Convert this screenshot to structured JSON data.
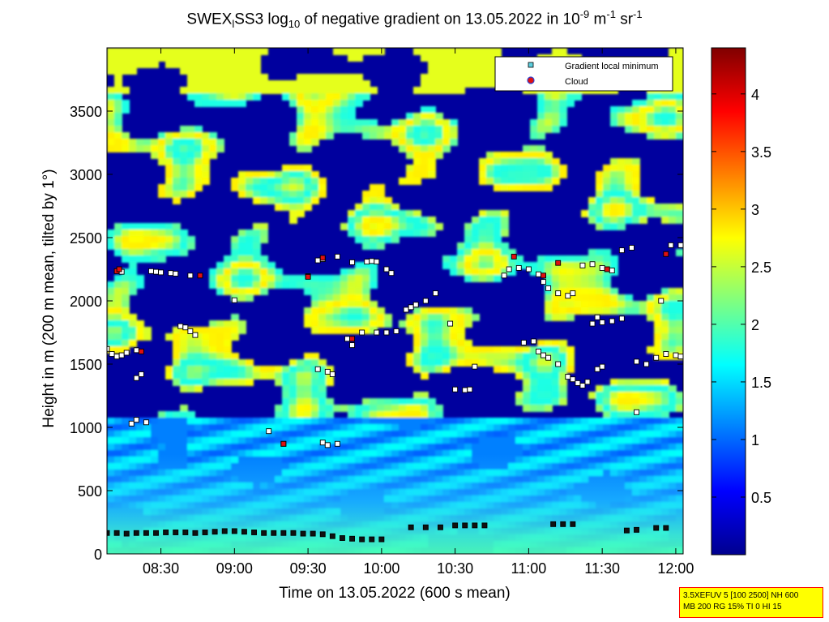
{
  "title": {
    "prefix": "SWEX",
    "sub1": "l",
    "mid": "SS3 log",
    "sub2": "10",
    "text": " of negative gradient on 13.05.2022 in 10",
    "sup1": "-9",
    "unit1": " m",
    "sup2": "-1",
    "unit2": " sr",
    "sup3": "-1"
  },
  "footer_lines": [
    "3.5XEFUV 5 [100 2500] NH 600",
    "MB 200 RG 15% TI 0 HI 15"
  ],
  "colors": {
    "accent_marker_fill": "#5ccfdf",
    "cloud_fill": "#e01010",
    "cloud_edge": "#3040d0"
  },
  "chart_data": {
    "type": "heatmap",
    "colormap": "jet",
    "xlabel": "Time on 13.05.2022 (600 s mean)",
    "ylabel": "Height in m (200 m mean, tilted by 1°)",
    "x_ticks": [
      "08:30",
      "09:00",
      "09:30",
      "10:00",
      "10:30",
      "11:00",
      "11:30",
      "12:00"
    ],
    "y_ticks": [
      0,
      500,
      1000,
      1500,
      2000,
      2500,
      3000,
      3500
    ],
    "xlim": [
      "08:08",
      "12:03"
    ],
    "ylim": [
      0,
      4000
    ],
    "colorbar": {
      "ticks": [
        0.5,
        1,
        1.5,
        2,
        2.5,
        3,
        3.5,
        4
      ],
      "range": [
        0,
        4.4
      ]
    },
    "legend": {
      "position": "top-right",
      "entries": [
        {
          "label": "Gradient local minimum",
          "marker": "square",
          "color": "#5ccfdf"
        },
        {
          "label": "Cloud",
          "marker": "circle",
          "color": "#e01010"
        }
      ]
    },
    "series": [
      {
        "name": "Gradient local minimum",
        "points": [
          [
            "08:08",
            165
          ],
          [
            "08:12",
            165
          ],
          [
            "08:16",
            160
          ],
          [
            "08:20",
            165
          ],
          [
            "08:24",
            165
          ],
          [
            "08:28",
            165
          ],
          [
            "08:32",
            170
          ],
          [
            "08:36",
            170
          ],
          [
            "08:40",
            170
          ],
          [
            "08:44",
            165
          ],
          [
            "08:48",
            170
          ],
          [
            "08:52",
            175
          ],
          [
            "08:56",
            180
          ],
          [
            "09:00",
            180
          ],
          [
            "09:04",
            175
          ],
          [
            "09:08",
            170
          ],
          [
            "09:12",
            165
          ],
          [
            "09:16",
            165
          ],
          [
            "09:20",
            165
          ],
          [
            "09:24",
            165
          ],
          [
            "09:28",
            160
          ],
          [
            "09:32",
            160
          ],
          [
            "09:36",
            155
          ],
          [
            "09:40",
            140
          ],
          [
            "09:44",
            125
          ],
          [
            "09:48",
            120
          ],
          [
            "09:52",
            115
          ],
          [
            "09:56",
            115
          ],
          [
            "10:00",
            115
          ],
          [
            "10:12",
            210
          ],
          [
            "10:18",
            210
          ],
          [
            "10:24",
            210
          ],
          [
            "10:30",
            225
          ],
          [
            "10:34",
            225
          ],
          [
            "10:38",
            225
          ],
          [
            "10:42",
            225
          ],
          [
            "11:10",
            235
          ],
          [
            "11:14",
            235
          ],
          [
            "11:18",
            235
          ],
          [
            "11:40",
            185
          ],
          [
            "11:44",
            190
          ],
          [
            "11:52",
            205
          ],
          [
            "11:56",
            205
          ],
          [
            "08:14",
            2230
          ],
          [
            "08:26",
            2235
          ],
          [
            "08:28",
            2230
          ],
          [
            "08:30",
            2225
          ],
          [
            "08:34",
            2220
          ],
          [
            "08:36",
            2215
          ],
          [
            "08:42",
            2200
          ],
          [
            "09:00",
            2005
          ],
          [
            "09:30",
            2195
          ],
          [
            "09:34",
            2320
          ],
          [
            "09:36",
            2330
          ],
          [
            "09:42",
            2350
          ],
          [
            "09:48",
            2305
          ],
          [
            "09:54",
            2310
          ],
          [
            "09:56",
            2315
          ],
          [
            "09:58",
            2310
          ],
          [
            "10:02",
            2250
          ],
          [
            "10:04",
            2220
          ],
          [
            "08:08",
            1620
          ],
          [
            "08:10",
            1580
          ],
          [
            "08:12",
            1560
          ],
          [
            "08:14",
            1570
          ],
          [
            "08:16",
            1590
          ],
          [
            "08:20",
            1610
          ],
          [
            "08:38",
            1800
          ],
          [
            "08:40",
            1790
          ],
          [
            "08:42",
            1760
          ],
          [
            "08:44",
            1730
          ],
          [
            "09:46",
            1700
          ],
          [
            "09:48",
            1650
          ],
          [
            "09:52",
            1750
          ],
          [
            "09:58",
            1750
          ],
          [
            "10:02",
            1750
          ],
          [
            "10:06",
            1760
          ],
          [
            "10:10",
            1930
          ],
          [
            "10:12",
            1950
          ],
          [
            "10:14",
            1970
          ],
          [
            "10:18",
            2000
          ],
          [
            "10:22",
            2060
          ],
          [
            "10:28",
            1820
          ],
          [
            "10:38",
            1480
          ],
          [
            "10:30",
            1300
          ],
          [
            "10:34",
            1295
          ],
          [
            "10:36",
            1300
          ],
          [
            "08:20",
            1390
          ],
          [
            "08:22",
            1420
          ],
          [
            "08:18",
            1030
          ],
          [
            "08:20",
            1060
          ],
          [
            "08:24",
            1040
          ],
          [
            "09:14",
            970
          ],
          [
            "09:20",
            870
          ],
          [
            "09:34",
            1460
          ],
          [
            "09:38",
            1440
          ],
          [
            "09:40",
            1420
          ],
          [
            "09:36",
            880
          ],
          [
            "09:38",
            860
          ],
          [
            "09:42",
            870
          ],
          [
            "10:50",
            2200
          ],
          [
            "10:52",
            2250
          ],
          [
            "10:56",
            2260
          ],
          [
            "11:00",
            2250
          ],
          [
            "11:04",
            2210
          ],
          [
            "11:06",
            2150
          ],
          [
            "11:08",
            2100
          ],
          [
            "11:12",
            2060
          ],
          [
            "11:16",
            2040
          ],
          [
            "11:18",
            2060
          ],
          [
            "11:22",
            2280
          ],
          [
            "11:26",
            2290
          ],
          [
            "11:30",
            2260
          ],
          [
            "11:34",
            2240
          ],
          [
            "11:38",
            2400
          ],
          [
            "11:42",
            2420
          ],
          [
            "10:58",
            1670
          ],
          [
            "11:02",
            1680
          ],
          [
            "11:04",
            1600
          ],
          [
            "11:06",
            1570
          ],
          [
            "11:08",
            1550
          ],
          [
            "11:12",
            1500
          ],
          [
            "11:16",
            1400
          ],
          [
            "11:18",
            1380
          ],
          [
            "11:20",
            1350
          ],
          [
            "11:22",
            1330
          ],
          [
            "11:24",
            1360
          ],
          [
            "11:28",
            1460
          ],
          [
            "11:30",
            1480
          ],
          [
            "11:26",
            1820
          ],
          [
            "11:30",
            1830
          ],
          [
            "11:34",
            1840
          ],
          [
            "11:38",
            1860
          ],
          [
            "11:44",
            1520
          ],
          [
            "11:48",
            1500
          ],
          [
            "11:52",
            1550
          ],
          [
            "11:56",
            1580
          ],
          [
            "12:00",
            1570
          ],
          [
            "12:02",
            1560
          ],
          [
            "11:54",
            2000
          ],
          [
            "11:58",
            2440
          ],
          [
            "12:02",
            2440
          ],
          [
            "11:44",
            1120
          ],
          [
            "11:28",
            1870
          ]
        ]
      },
      {
        "name": "Cloud",
        "points": [
          [
            "08:12",
            2235
          ],
          [
            "08:13",
            2250
          ],
          [
            "08:22",
            1600
          ],
          [
            "08:46",
            2200
          ],
          [
            "09:20",
            870
          ],
          [
            "09:30",
            2190
          ],
          [
            "09:36",
            2340
          ],
          [
            "09:48",
            1700
          ],
          [
            "10:54",
            2350
          ],
          [
            "11:06",
            2200
          ],
          [
            "11:12",
            2300
          ],
          [
            "11:32",
            2250
          ],
          [
            "11:56",
            2370
          ]
        ]
      }
    ]
  }
}
